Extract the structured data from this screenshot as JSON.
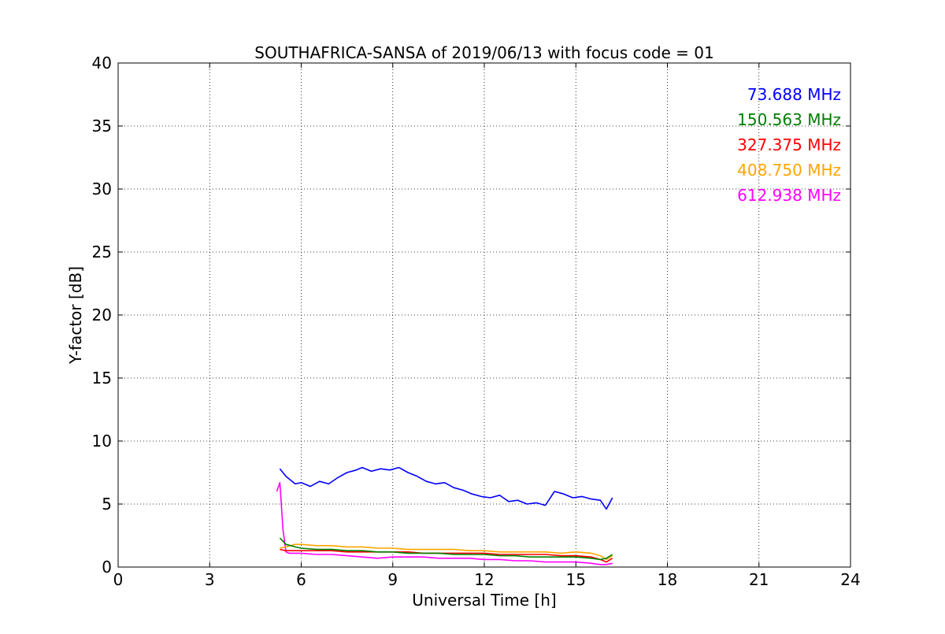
{
  "chart_data": {
    "type": "line",
    "title": "SOUTHAFRICA-SANSA of 2019/06/13 with focus code = 01",
    "xlabel": "Universal Time [h]",
    "ylabel": "Y-factor [dB]",
    "xlim": [
      0,
      24
    ],
    "ylim": [
      0,
      40
    ],
    "xticks": [
      0,
      3,
      6,
      9,
      12,
      15,
      18,
      21,
      24
    ],
    "yticks": [
      0,
      5,
      10,
      15,
      20,
      25,
      30,
      35,
      40
    ],
    "grid": true,
    "legend_placement": "top-right",
    "series": [
      {
        "name": "73.688 MHz",
        "color": "#0000ff",
        "x": [
          5.3,
          5.5,
          5.8,
          6.0,
          6.3,
          6.6,
          6.9,
          7.2,
          7.5,
          7.8,
          8.0,
          8.3,
          8.6,
          8.9,
          9.2,
          9.5,
          9.8,
          10.1,
          10.4,
          10.7,
          11.0,
          11.3,
          11.6,
          11.9,
          12.2,
          12.5,
          12.8,
          13.1,
          13.4,
          13.7,
          14.0,
          14.3,
          14.6,
          14.9,
          15.2,
          15.5,
          15.8,
          16.0,
          16.2
        ],
        "y": [
          7.8,
          7.2,
          6.6,
          6.7,
          6.4,
          6.8,
          6.6,
          7.1,
          7.5,
          7.7,
          7.9,
          7.6,
          7.8,
          7.7,
          7.9,
          7.5,
          7.2,
          6.8,
          6.6,
          6.7,
          6.3,
          6.1,
          5.8,
          5.6,
          5.5,
          5.7,
          5.2,
          5.3,
          5.0,
          5.1,
          4.9,
          6.0,
          5.8,
          5.5,
          5.6,
          5.4,
          5.3,
          4.6,
          5.5
        ]
      },
      {
        "name": "150.563 MHz",
        "color": "#008000",
        "x": [
          5.3,
          5.5,
          5.8,
          6.0,
          6.5,
          7.0,
          7.5,
          8.0,
          8.5,
          9.0,
          9.5,
          10.0,
          10.5,
          11.0,
          11.5,
          12.0,
          12.5,
          13.0,
          13.5,
          14.0,
          14.5,
          15.0,
          15.5,
          15.8,
          16.0,
          16.2
        ],
        "y": [
          2.3,
          1.8,
          1.6,
          1.5,
          1.4,
          1.4,
          1.3,
          1.3,
          1.2,
          1.2,
          1.1,
          1.1,
          1.1,
          1.0,
          1.0,
          1.0,
          0.9,
          0.9,
          0.8,
          0.8,
          0.8,
          0.8,
          0.7,
          0.6,
          0.7,
          1.0
        ]
      },
      {
        "name": "327.375 MHz",
        "color": "#ff0000",
        "x": [
          5.3,
          5.5,
          5.8,
          6.0,
          6.5,
          7.0,
          7.5,
          8.0,
          8.5,
          9.0,
          9.5,
          10.0,
          10.5,
          11.0,
          11.5,
          12.0,
          12.5,
          13.0,
          13.5,
          14.0,
          14.5,
          15.0,
          15.5,
          15.8,
          16.0,
          16.2
        ],
        "y": [
          1.4,
          1.3,
          1.3,
          1.3,
          1.3,
          1.3,
          1.2,
          1.2,
          1.2,
          1.2,
          1.2,
          1.1,
          1.1,
          1.1,
          1.1,
          1.1,
          1.0,
          1.0,
          1.0,
          1.0,
          0.9,
          0.9,
          0.8,
          0.6,
          0.4,
          0.7
        ]
      },
      {
        "name": "408.750 MHz",
        "color": "#ffa500",
        "x": [
          5.3,
          5.5,
          5.8,
          6.0,
          6.5,
          7.0,
          7.5,
          8.0,
          8.5,
          9.0,
          9.5,
          10.0,
          10.5,
          11.0,
          11.5,
          12.0,
          12.5,
          13.0,
          13.5,
          14.0,
          14.5,
          15.0,
          15.5,
          15.8,
          16.0,
          16.2
        ],
        "y": [
          1.5,
          1.6,
          1.8,
          1.8,
          1.7,
          1.7,
          1.6,
          1.6,
          1.5,
          1.5,
          1.4,
          1.4,
          1.4,
          1.4,
          1.3,
          1.3,
          1.2,
          1.2,
          1.2,
          1.2,
          1.1,
          1.2,
          1.1,
          0.9,
          0.6,
          0.9
        ]
      },
      {
        "name": "612.938 MHz",
        "color": "#ff00ff",
        "x": [
          5.2,
          5.3,
          5.4,
          5.5,
          5.6,
          6.0,
          6.5,
          7.0,
          7.5,
          8.0,
          8.5,
          9.0,
          9.5,
          10.0,
          10.5,
          11.0,
          11.5,
          12.0,
          12.5,
          13.0,
          13.5,
          14.0,
          14.5,
          15.0,
          15.5,
          15.8,
          16.0,
          16.2
        ],
        "y": [
          6.0,
          6.7,
          3.0,
          1.2,
          1.1,
          1.1,
          1.0,
          1.0,
          0.9,
          0.8,
          0.7,
          0.8,
          0.8,
          0.8,
          0.7,
          0.7,
          0.7,
          0.6,
          0.6,
          0.5,
          0.5,
          0.4,
          0.4,
          0.4,
          0.3,
          0.2,
          0.2,
          0.3
        ]
      }
    ]
  }
}
